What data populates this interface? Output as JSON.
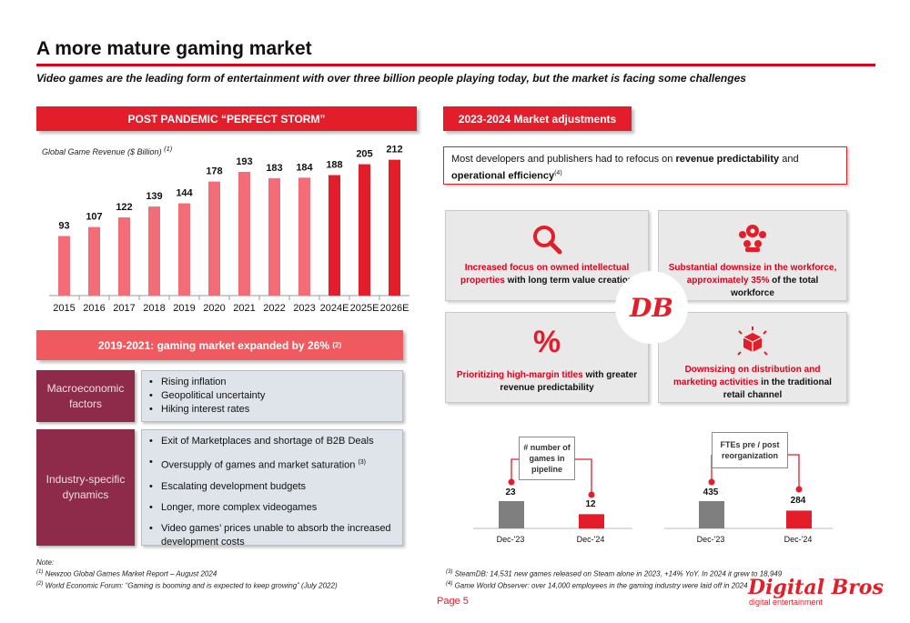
{
  "header": {
    "title": "A more mature gaming market",
    "subtitle": "Video games are the leading form of entertainment with over three billion people playing today, but the market is facing some challenges"
  },
  "left": {
    "bar_title": "POST PANDEMIC “PERFECT STORM”",
    "chart_note": "Global Game Revenue ($ Billion)",
    "chart_note_sup": "(1)",
    "expanded_title": "2019-2021: gaming market expanded by 26%",
    "expanded_sup": "(2)",
    "macro": {
      "label": "Macroeconomic factors",
      "items": [
        "Rising inflation",
        "Geopolitical uncertainty",
        "Hiking interest rates"
      ]
    },
    "industry": {
      "label": "Industry-specific dynamics",
      "items": [
        "Exit of Marketplaces and shortage of B2B Deals",
        "Oversupply of games and market saturation",
        "Escalating development budgets",
        "Longer, more complex videogames",
        "Video games’ prices unable to absorb the increased development costs"
      ],
      "item2_sup": "(3)"
    },
    "notes": {
      "label": "Note:",
      "n1_sup": "(1)",
      "n1": "Newzoo Global Games Market Report – August 2024",
      "n2_sup": "(2)",
      "n2": "World Economic Forum: “Gaming is booming and is expected to keep growing” (July 2022)"
    }
  },
  "right": {
    "bar_title": "2023-2024 Market adjustments",
    "refocus": {
      "pre": "Most developers and publishers had to refocus on ",
      "b1": "revenue predictability",
      "mid": " and ",
      "b2": "operational efficiency",
      "sup": "(4)"
    },
    "quads": {
      "q1": {
        "red": "Increased focus on owned intellectual properties",
        "blk": " with long term value creation",
        "icon": "magnifier-icon"
      },
      "q2": {
        "red": "Substantial downsize in the workforce, approximately 35%",
        "blk": " of the total workforce",
        "icon": "workforce-icon"
      },
      "q3": {
        "red": "Prioritizing high-margin titles",
        "blk": " with greater revenue predictability",
        "icon": "percent-icon"
      },
      "q4": {
        "red": "Downsizing on distribution and marketing activities",
        "blk": " in the traditional retail channel",
        "icon": "distribution-box-icon"
      }
    },
    "center_logo": "DB",
    "mini1": {
      "callout": "# number of games in pipeline",
      "v1": "23",
      "v2": "12",
      "l1": "Dec-'23",
      "l2": "Dec-'24"
    },
    "mini2": {
      "callout": "FTEs pre / post reorganization",
      "v1": "435",
      "v2": "284",
      "l1": "Dec-'23",
      "l2": "Dec-'24"
    },
    "notes": {
      "n3_sup": "(3)",
      "n3": "SteamDB: 14,531 new games released on Steam alone in 2023, +14% YoY. In 2024 it grew to 18,949",
      "n4_sup": "(4)",
      "n4": "Game World Observer: over 14,000 employees in the gaming industry were laid off in 2024"
    }
  },
  "footer": {
    "page": "Page 5",
    "brand": "Digital Bros",
    "brand_sub": "digital entertainment"
  },
  "colors": {
    "red": "#e31e2a",
    "light_red": "#f26d77",
    "grey": "#7f7f7f"
  },
  "chart_data": [
    {
      "type": "bar",
      "title": "Global Game Revenue ($ Billion)",
      "categories": [
        "2015",
        "2016",
        "2017",
        "2018",
        "2019",
        "2020",
        "2021",
        "2022",
        "2023",
        "2024E",
        "2025E",
        "2026E"
      ],
      "values": [
        93,
        107,
        122,
        139,
        144,
        178,
        193,
        183,
        184,
        188,
        205,
        212
      ],
      "xlabel": "",
      "ylabel": "$ Billion",
      "ylim": [
        0,
        220
      ]
    },
    {
      "type": "bar",
      "title": "# number of games in pipeline",
      "categories": [
        "Dec-'23",
        "Dec-'24"
      ],
      "values": [
        23,
        12
      ]
    },
    {
      "type": "bar",
      "title": "FTEs pre / post reorganization",
      "categories": [
        "Dec-'23",
        "Dec-'24"
      ],
      "values": [
        435,
        284
      ]
    }
  ]
}
